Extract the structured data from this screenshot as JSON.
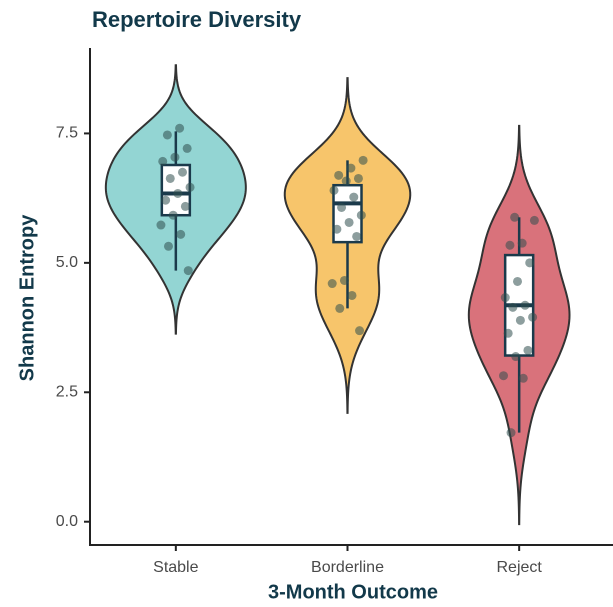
{
  "chart_data": {
    "type": "violin",
    "title": "Repertoire Diversity",
    "x_label": "3-Month Outcome",
    "y_label": "Shannon Entropy",
    "categories": [
      "Stable",
      "Borderline",
      "Reject"
    ],
    "ylim": [
      -0.45,
      9.15
    ],
    "yticks": [
      {
        "value": 0,
        "label": "0.0"
      },
      2.5,
      {
        "value": 5,
        "label": "5.0"
      },
      7.5
    ],
    "series": [
      {
        "name": "Stable",
        "color": "#93d5d3",
        "q1": 5.92,
        "median": 6.34,
        "q3": 6.89,
        "whisker_low": 4.85,
        "whisker_high": 7.54,
        "points": [
          7.6,
          7.47,
          7.21,
          7.04,
          6.96,
          6.75,
          6.63,
          6.46,
          6.34,
          6.21,
          6.09,
          5.92,
          5.73,
          5.55,
          5.32,
          4.85
        ]
      },
      {
        "name": "Borderline",
        "color": "#f7c56b",
        "q1": 5.4,
        "median": 6.15,
        "q3": 6.5,
        "whisker_low": 4.12,
        "whisker_high": 6.98,
        "points": [
          6.98,
          6.83,
          6.69,
          6.63,
          6.58,
          6.4,
          6.27,
          6.07,
          5.92,
          5.78,
          5.65,
          5.51,
          4.66,
          4.6,
          4.37,
          4.12,
          3.69
        ]
      },
      {
        "name": "Reject",
        "color": "#d9727b",
        "q1": 3.21,
        "median": 4.18,
        "q3": 5.15,
        "whisker_low": 1.72,
        "whisker_high": 5.88,
        "points": [
          5.88,
          5.82,
          5.38,
          5.34,
          5.0,
          4.64,
          4.33,
          4.18,
          4.14,
          3.95,
          3.89,
          3.64,
          3.31,
          3.19,
          2.82,
          2.77,
          1.72
        ]
      }
    ]
  }
}
